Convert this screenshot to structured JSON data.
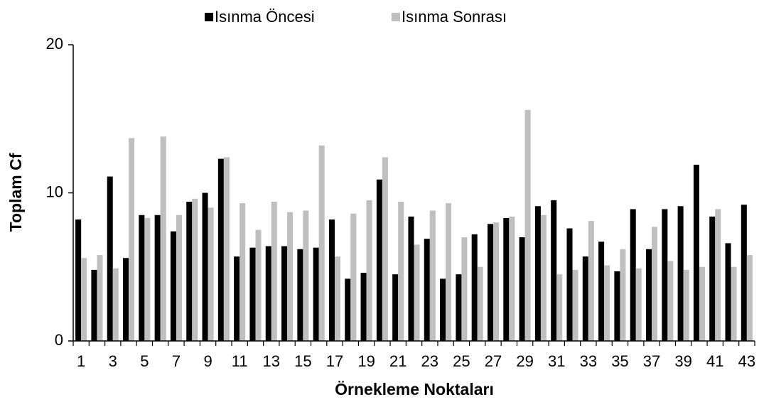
{
  "chart_data": {
    "type": "bar",
    "x_label": "Örnekleme Noktaları",
    "y_label": "Toplam Cf",
    "categories": [
      "1",
      null,
      "3",
      null,
      "5",
      null,
      "7",
      null,
      "9",
      null,
      "11",
      null,
      "13",
      null,
      "15",
      null,
      "17",
      null,
      "19",
      null,
      "21",
      null,
      "23",
      null,
      "25",
      null,
      "27",
      null,
      "29",
      null,
      "31",
      null,
      "33",
      null,
      "35",
      null,
      "37",
      null,
      "39",
      null,
      "41",
      null,
      "43"
    ],
    "series": [
      {
        "name": "Isınma Öncesi",
        "color": "#000000",
        "values": [
          8.2,
          4.8,
          11.1,
          5.6,
          8.5,
          8.5,
          7.4,
          9.4,
          10.0,
          12.3,
          5.7,
          6.3,
          6.4,
          6.4,
          6.2,
          6.3,
          8.2,
          4.2,
          4.6,
          10.9,
          4.5,
          8.4,
          6.9,
          4.2,
          4.5,
          7.2,
          7.9,
          8.3,
          7.0,
          9.1,
          9.5,
          7.6,
          5.7,
          6.7,
          4.7,
          8.9,
          6.2,
          8.9,
          9.1,
          11.9,
          8.4,
          6.6,
          9.2
        ]
      },
      {
        "name": "Isınma Sonrası",
        "color": "#bfbfbf",
        "values": [
          5.6,
          5.8,
          4.9,
          13.7,
          8.3,
          13.8,
          8.5,
          9.6,
          9.0,
          12.4,
          9.3,
          7.5,
          9.4,
          8.7,
          8.8,
          13.2,
          5.7,
          8.6,
          9.5,
          12.4,
          9.4,
          6.5,
          8.8,
          9.3,
          7.0,
          5.0,
          8.0,
          8.4,
          15.6,
          8.5,
          4.5,
          4.8,
          8.1,
          5.1,
          6.2,
          4.9,
          7.7,
          5.4,
          4.8,
          5.0,
          8.9,
          5.0,
          5.8
        ]
      }
    ],
    "ylim": [
      0,
      20
    ],
    "yticks": [
      0,
      10,
      20
    ],
    "legend": "top"
  }
}
